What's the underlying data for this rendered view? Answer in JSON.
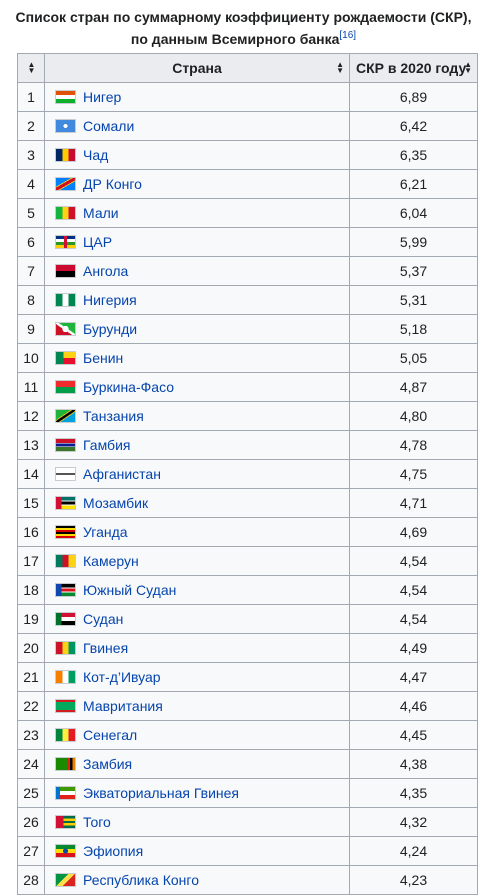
{
  "caption": {
    "line1": "Список стран по суммарному коэффициенту рождаемости (СКР),",
    "line2": "по данным Всемирного банка",
    "ref": "[16]"
  },
  "table": {
    "headers": {
      "rank_sort_icon": "sort-icon",
      "country": "Страна",
      "value": "СКР в 2020 году"
    },
    "rows": [
      {
        "rank": "1",
        "country": "Нигер",
        "value": "6,89",
        "flag": "linear-gradient(#e05206 0 33%, #ffffff 33% 66%, #0db02b 66%)"
      },
      {
        "rank": "2",
        "country": "Сомали",
        "value": "6,42",
        "flag": "radial-gradient(circle at 50% 50%, #ffffff 0 18%, #4189dd 19%)"
      },
      {
        "rank": "3",
        "country": "Чад",
        "value": "6,35",
        "flag": "linear-gradient(90deg, #002664 0 33%, #fecb00 33% 66%, #c60c30 66%)"
      },
      {
        "rank": "4",
        "country": "ДР Конго",
        "value": "6,21",
        "flag": "linear-gradient(150deg, #007fff 0 38%, #f7d618 38% 42%, #ce1021 42% 58%, #f7d618 58% 62%, #007fff 62%)"
      },
      {
        "rank": "5",
        "country": "Мали",
        "value": "6,04",
        "flag": "linear-gradient(90deg, #14b53a 0 33%, #fcd116 33% 66%, #ce1126 66%)"
      },
      {
        "rank": "6",
        "country": "ЦАР",
        "value": "5,99",
        "flag": "linear-gradient(90deg, transparent 0 42%, #d21034 42% 58%, transparent 58%), linear-gradient(#003082 0 25%, #ffffff 25% 50%, #289728 50% 75%, #ffce00 75%)"
      },
      {
        "rank": "7",
        "country": "Ангола",
        "value": "5,37",
        "flag": "linear-gradient(#cc092f 0 50%, #000000 50%)"
      },
      {
        "rank": "8",
        "country": "Нигерия",
        "value": "5,31",
        "flag": "linear-gradient(90deg, #008751 0 33%, #ffffff 33% 66%, #008751 66%)"
      },
      {
        "rank": "9",
        "country": "Бурунди",
        "value": "5,18",
        "flag": "radial-gradient(circle at 50% 50%, #ffffff 0 28%, transparent 29%), linear-gradient(34deg, #ce1126 0 44%, #ffffff 44% 56%, #1eb53a 56%)"
      },
      {
        "rank": "10",
        "country": "Бенин",
        "value": "5,05",
        "flag": "linear-gradient(90deg, #008751 0 40%, transparent 40%), linear-gradient(#fcd116 0 50%, #e8112d 50%)"
      },
      {
        "rank": "11",
        "country": "Буркина-Фасо",
        "value": "4,87",
        "flag": "linear-gradient(#ef2b2d 0 50%, #009e49 50%)"
      },
      {
        "rank": "12",
        "country": "Танзания",
        "value": "4,80",
        "flag": "linear-gradient(146deg, #1eb53a 0 40%, #fcd116 40% 44%, #000000 44% 56%, #fcd116 56% 60%, #00a3dd 60%)"
      },
      {
        "rank": "13",
        "country": "Гамбия",
        "value": "4,78",
        "flag": "linear-gradient(#ce1126 0 33%, #ffffff 33% 37%, #0c1c8c 37% 63%, #ffffff 63% 67%, #3a7728 67%)"
      },
      {
        "rank": "14",
        "country": "Афганистан",
        "value": "4,75",
        "flag": "linear-gradient(transparent 0 40%, #555555 40% 60%, transparent 60%), linear-gradient(#ffffff, #ffffff)"
      },
      {
        "rank": "15",
        "country": "Мозамбик",
        "value": "4,71",
        "flag": "linear-gradient(90deg, #d21034 0 30%, transparent 30%), linear-gradient(#007168 0 30%, #ffffff 30% 36%, #000000 36% 64%, #ffffff 64% 70%, #fce100 70%)"
      },
      {
        "rank": "16",
        "country": "Уганда",
        "value": "4,69",
        "flag": "linear-gradient(#000000 0 16.6%, #fcdc04 16.6% 33.3%, #d90000 33.3% 50%, #000000 50% 66.6%, #fcdc04 66.6% 83.3%, #d90000 83.3%)"
      },
      {
        "rank": "17",
        "country": "Камерун",
        "value": "4,54",
        "flag": "linear-gradient(90deg, #007a5e 0 33%, #ce1126 33% 66%, #fcd116 66%)"
      },
      {
        "rank": "18",
        "country": "Южный Судан",
        "value": "4,54",
        "flag": "linear-gradient(90deg, #0f47af 0 30%, transparent 30%), linear-gradient(#000000 0 30%, #ffffff 30% 36%, #da121a 36% 64%, #ffffff 64% 70%, #078930 70%)"
      },
      {
        "rank": "19",
        "country": "Судан",
        "value": "4,54",
        "flag": "linear-gradient(90deg, #007229 0 28%, transparent 28%), linear-gradient(#d21034 0 33%, #ffffff 33% 66%, #000000 66%)"
      },
      {
        "rank": "20",
        "country": "Гвинея",
        "value": "4,49",
        "flag": "linear-gradient(90deg, #ce1126 0 33%, #fcd116 33% 66%, #009460 66%)"
      },
      {
        "rank": "21",
        "country": "Кот-д’Ивуар",
        "value": "4,47",
        "flag": "linear-gradient(90deg, #f77f00 0 33%, #ffffff 33% 66%, #009e60 66%)"
      },
      {
        "rank": "22",
        "country": "Мавритания",
        "value": "4,46",
        "flag": "linear-gradient(#d01c1f 0 15%, #00a95c 15% 85%, #d01c1f 85%)"
      },
      {
        "rank": "23",
        "country": "Сенегал",
        "value": "4,45",
        "flag": "linear-gradient(90deg, #00853f 0 33%, #fdef42 33% 66%, #e31b23 66%)"
      },
      {
        "rank": "24",
        "country": "Замбия",
        "value": "4,38",
        "flag": "linear-gradient(90deg, transparent 0 62%, #de2010 62% 75%, #000000 75% 88%, #ef7d00 88%), linear-gradient(#198a00, #198a00)"
      },
      {
        "rank": "25",
        "country": "Экваториальная Гвинея",
        "value": "4,35",
        "flag": "linear-gradient(90deg, #0073ce 0 22%, transparent 22%), linear-gradient(#3e9a00 0 33%, #ffffff 33% 66%, #e32118 66%)"
      },
      {
        "rank": "26",
        "country": "Того",
        "value": "4,32",
        "flag": "linear-gradient(90deg, #d21034 0 40%, transparent 40%), linear-gradient(#006a4e 0 20%, #ffce00 20% 40%, #006a4e 40% 60%, #ffce00 60% 80%, #006a4e 80%)"
      },
      {
        "rank": "27",
        "country": "Эфиопия",
        "value": "4,24",
        "flag": "radial-gradient(circle at 50% 50%, #0f47af 0 22%, transparent 23%), linear-gradient(#078930 0 33%, #fcdd09 33% 66%, #da121a 66%)"
      },
      {
        "rank": "28",
        "country": "Республика Конго",
        "value": "4,23",
        "flag": "linear-gradient(135deg, #009543 0 40%, #fbde4a 40% 60%, #dc241f 60%)"
      }
    ]
  }
}
